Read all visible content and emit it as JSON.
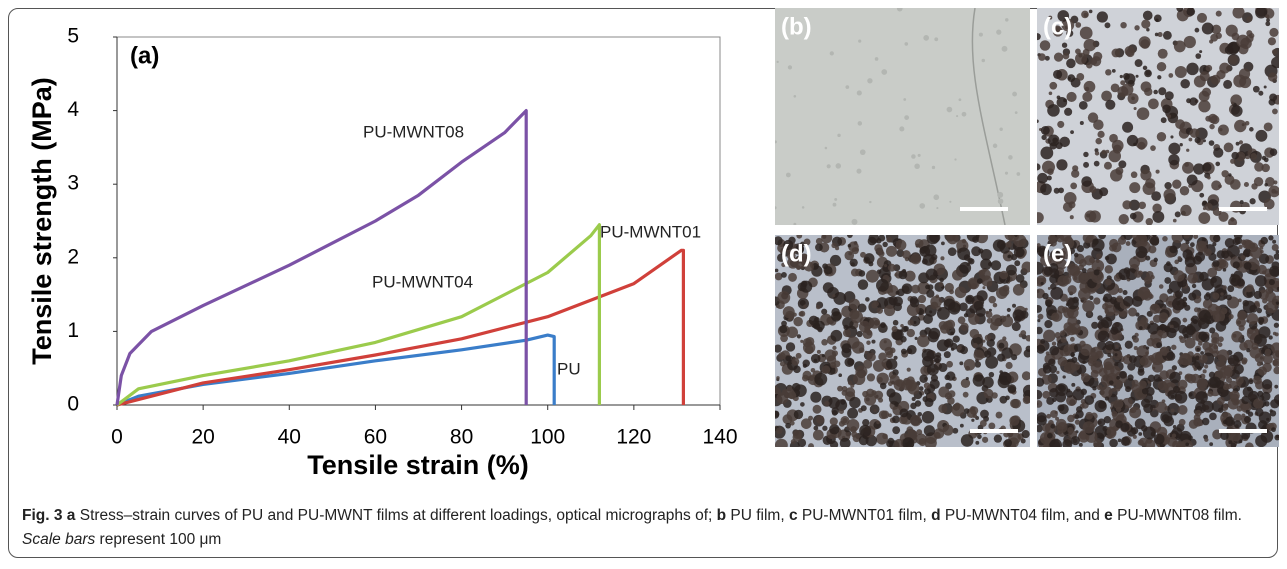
{
  "chart_data": {
    "type": "line",
    "panel_label": "(a)",
    "x_label": "Tensile strain (%)",
    "y_label": "Tensile strength (MPa)",
    "xlim": [
      0,
      140
    ],
    "ylim": [
      0,
      5
    ],
    "xticks": [
      0,
      20,
      40,
      60,
      80,
      100,
      120,
      140
    ],
    "yticks": [
      0,
      1,
      2,
      3,
      4,
      5
    ],
    "series": [
      {
        "name": "PU",
        "color": "#3a7dc9",
        "x": [
          0,
          5,
          20,
          40,
          60,
          80,
          95,
          100,
          101.5,
          101.5
        ],
        "values": [
          0,
          0.12,
          0.28,
          0.43,
          0.6,
          0.75,
          0.88,
          0.95,
          0.93,
          0
        ]
      },
      {
        "name": "PU-MWNT01",
        "color": "#d0403a",
        "x": [
          0,
          20,
          40,
          60,
          80,
          100,
          120,
          131,
          131.5,
          131.5
        ],
        "values": [
          0,
          0.3,
          0.48,
          0.68,
          0.9,
          1.2,
          1.65,
          2.1,
          2.1,
          0
        ]
      },
      {
        "name": "PU-MWNT04",
        "color": "#9bcb4c",
        "x": [
          0,
          5,
          20,
          40,
          60,
          80,
          100,
          110,
          112,
          112
        ],
        "values": [
          0,
          0.22,
          0.4,
          0.6,
          0.85,
          1.2,
          1.8,
          2.3,
          2.45,
          0
        ]
      },
      {
        "name": "PU-MWNT08",
        "color": "#7b52a6",
        "x": [
          0,
          1,
          3,
          8,
          20,
          40,
          50,
          60,
          70,
          80,
          90,
          95,
          95
        ],
        "values": [
          0,
          0.4,
          0.7,
          1.0,
          1.35,
          1.9,
          2.2,
          2.5,
          2.85,
          3.3,
          3.7,
          4.0,
          0
        ]
      }
    ]
  },
  "panels": [
    {
      "label": "(b)"
    },
    {
      "label": "(c)"
    },
    {
      "label": "(d)"
    },
    {
      "label": "(e)"
    }
  ],
  "caption": {
    "parts": [
      "Fig. 3",
      "a",
      " Stress–strain curves of PU and PU-MWNT films at different loadings, optical micrographs of; ",
      "b",
      " PU film, ",
      "c",
      " PU-MWNT01 film, ",
      "d",
      " PU-MWNT04 film, and ",
      "e",
      " PU-MWNT08 film. ",
      "Scale bars",
      " represent 100 μm"
    ]
  }
}
